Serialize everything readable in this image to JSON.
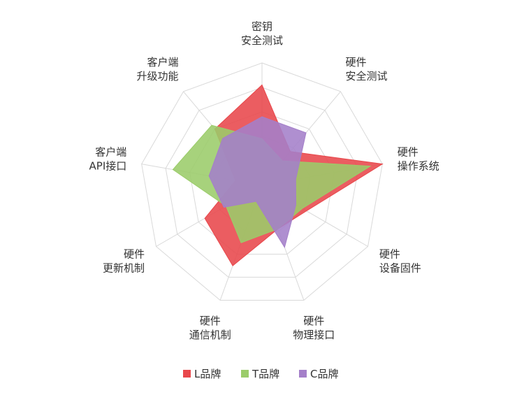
{
  "chart_data": {
    "type": "radar",
    "title": "",
    "axes": [
      [
        "密钥",
        "安全测试"
      ],
      [
        "硬件",
        "安全测试"
      ],
      [
        "硬件",
        "操作系统"
      ],
      [
        "硬件",
        "设备固件"
      ],
      [
        "硬件",
        "物理接口"
      ],
      [
        "硬件",
        "通信机制"
      ],
      [
        "硬件",
        "更新机制"
      ],
      [
        "客户端",
        "API接口"
      ],
      [
        "客户端",
        "升级功能"
      ]
    ],
    "rmax": 5,
    "grid_levels": 5,
    "series": [
      {
        "name": "L品牌",
        "color": "#e8474b",
        "values": [
          4.1,
          1.8,
          5.0,
          2.1,
          1.9,
          3.5,
          2.7,
          1.1,
          3.0
        ]
      },
      {
        "name": "T品牌",
        "color": "#9bcc6a",
        "values": [
          1.9,
          1.3,
          4.5,
          1.9,
          1.9,
          2.5,
          1.7,
          3.7,
          3.2
        ]
      },
      {
        "name": "C品牌",
        "color": "#a47fc9",
        "values": [
          2.8,
          2.8,
          1.4,
          1.6,
          2.7,
          0.7,
          1.8,
          2.2,
          2.5
        ]
      }
    ],
    "legend_position": "bottom",
    "grid": true
  }
}
